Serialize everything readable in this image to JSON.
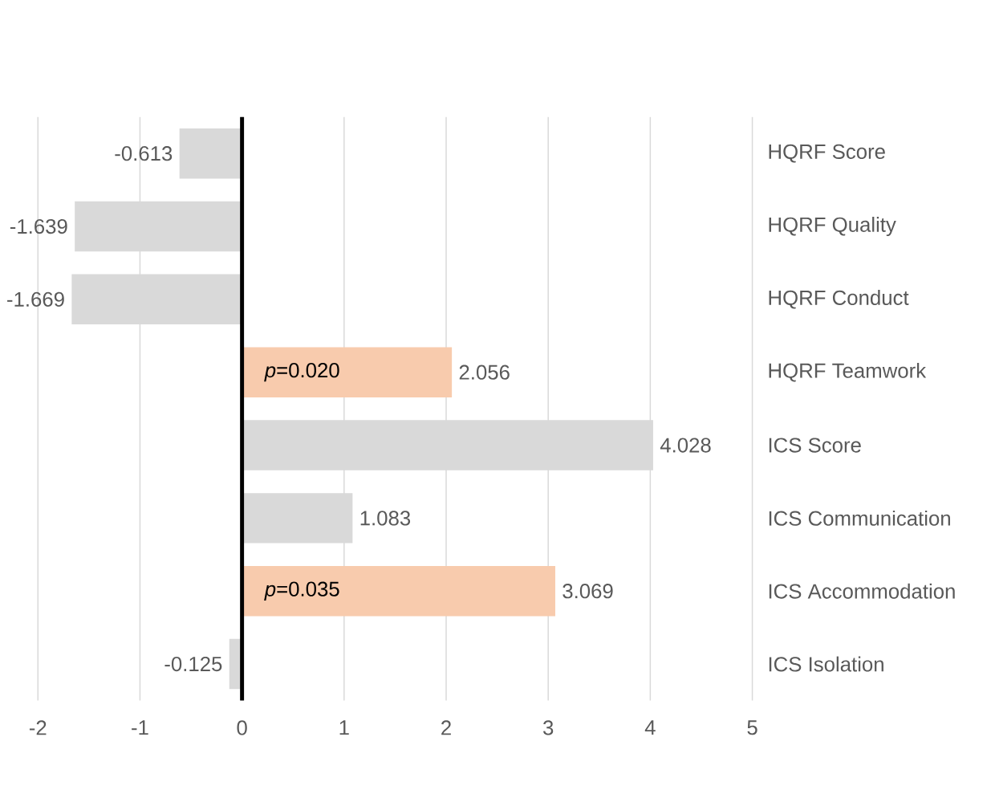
{
  "chart_data": {
    "type": "bar",
    "orientation": "horizontal",
    "categories": [
      "HQRF Score",
      "HQRF Quality",
      "HQRF Conduct",
      "HQRF Teamwork",
      "ICS Score",
      "ICS Communication",
      "ICS Accommodation",
      "ICS Isolation"
    ],
    "values": [
      -0.613,
      -1.639,
      -1.669,
      2.056,
      4.028,
      1.083,
      3.069,
      -0.125
    ],
    "colors": [
      "#d9d9d9",
      "#d9d9d9",
      "#d9d9d9",
      "#f8cbad",
      "#d9d9d9",
      "#d9d9d9",
      "#f8cbad",
      "#d9d9d9"
    ],
    "data_labels": true,
    "xlim": [
      -2,
      5
    ],
    "xticks": [
      -2,
      -1,
      0,
      1,
      2,
      3,
      4,
      5
    ],
    "grid": "x",
    "annotations": [
      "*p*=0.020",
      "*p*=0.035"
    ]
  }
}
